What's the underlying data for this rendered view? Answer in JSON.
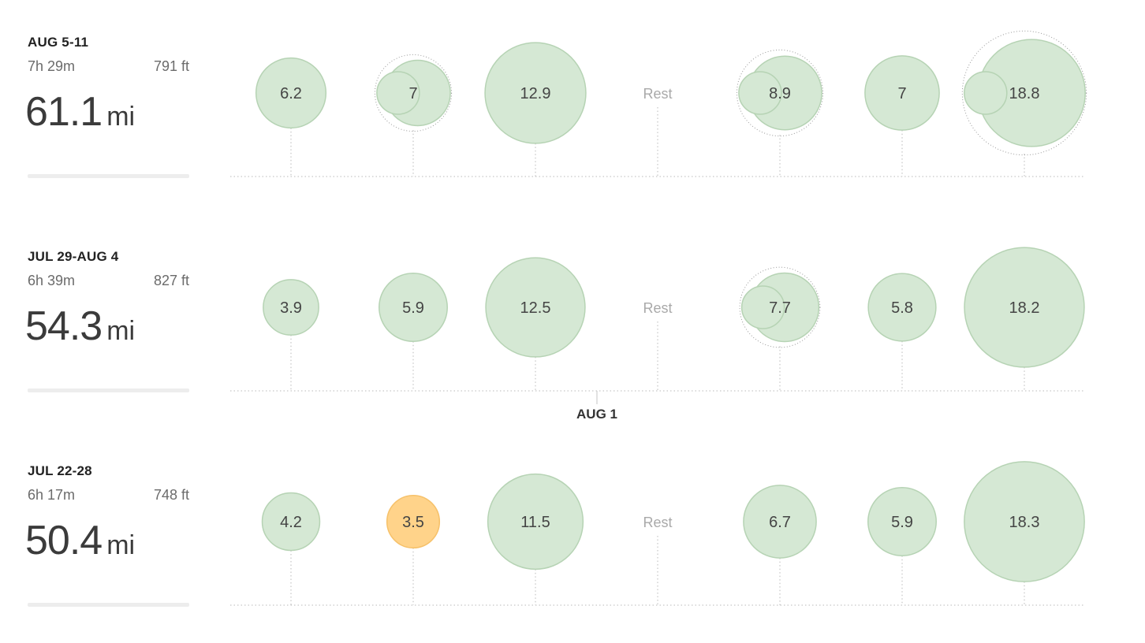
{
  "chart_data": {
    "type": "bubble",
    "title": "",
    "days_per_week": 7,
    "colors": {
      "run_fill": "#d5e8d4",
      "run_stroke": "#b6d3b4",
      "highlight_fill": "#ffd38a",
      "highlight_stroke": "#f6c16a",
      "rest_text": "#a9a9a9",
      "value_text": "#444444",
      "axis": "#b9b9b9"
    },
    "weeks": [
      {
        "label": "AUG 5-11",
        "duration": "7h 29m",
        "elevation": "791 ft",
        "distance": "61.1",
        "unit": "mi",
        "days": [
          {
            "type": "run",
            "value": "6.2",
            "miles": 6.2
          },
          {
            "type": "run",
            "value": "7",
            "miles": 7,
            "inner_miles": 2.3
          },
          {
            "type": "run",
            "value": "12.9",
            "miles": 12.9
          },
          {
            "type": "rest",
            "value": "Rest"
          },
          {
            "type": "run",
            "value": "8.9",
            "miles": 8.9,
            "inner_miles": 2.3
          },
          {
            "type": "run",
            "value": "7",
            "miles": 7
          },
          {
            "type": "run",
            "value": "18.8",
            "miles": 18.8,
            "inner_miles": 2.3
          }
        ]
      },
      {
        "label": "JUL 29-AUG 4",
        "duration": "6h 39m",
        "elevation": "827 ft",
        "distance": "54.3",
        "unit": "mi",
        "days": [
          {
            "type": "run",
            "value": "3.9",
            "miles": 3.9
          },
          {
            "type": "run",
            "value": "5.9",
            "miles": 5.9
          },
          {
            "type": "run",
            "value": "12.5",
            "miles": 12.5
          },
          {
            "type": "rest",
            "value": "Rest"
          },
          {
            "type": "run",
            "value": "7.7",
            "miles": 7.7,
            "inner_miles": 2.3
          },
          {
            "type": "run",
            "value": "5.8",
            "miles": 5.8
          },
          {
            "type": "run",
            "value": "18.2",
            "miles": 18.2
          }
        ]
      },
      {
        "label": "JUL 22-28",
        "duration": "6h 17m",
        "elevation": "748 ft",
        "distance": "50.4",
        "unit": "mi",
        "days": [
          {
            "type": "run",
            "value": "4.2",
            "miles": 4.2
          },
          {
            "type": "run",
            "value": "3.5",
            "miles": 3.5,
            "highlight": true
          },
          {
            "type": "run",
            "value": "11.5",
            "miles": 11.5
          },
          {
            "type": "rest",
            "value": "Rest"
          },
          {
            "type": "run",
            "value": "6.7",
            "miles": 6.7
          },
          {
            "type": "run",
            "value": "5.9",
            "miles": 5.9
          },
          {
            "type": "run",
            "value": "18.3",
            "miles": 18.3
          }
        ]
      }
    ],
    "month_marker": {
      "label": "AUG 1",
      "week_index": 1,
      "day_fraction": 2.5
    }
  }
}
